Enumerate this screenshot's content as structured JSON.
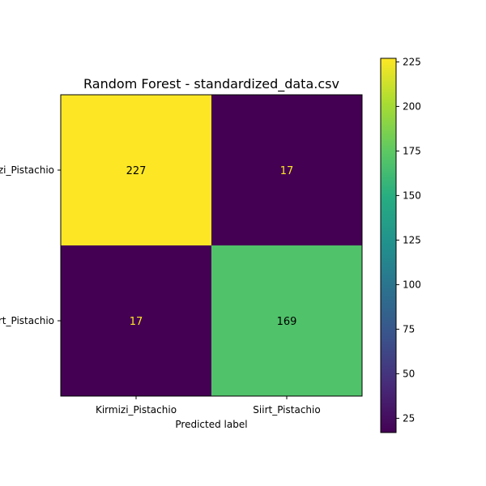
{
  "chart_data": {
    "type": "heatmap",
    "title": "Random Forest - standardized_data.csv",
    "xlabel": "Predicted label",
    "ylabel": "",
    "x_categories": [
      "Kirmizi_Pistachio",
      "Siirt_Pistachio"
    ],
    "y_categories": [
      "Kirmizi_Pistachio",
      "Siirt_Pistachio"
    ],
    "matrix": [
      [
        227,
        17
      ],
      [
        17,
        169
      ]
    ],
    "colormap": "viridis",
    "colorbar": {
      "min": 17,
      "max": 227,
      "ticks": [
        25,
        50,
        75,
        100,
        125,
        150,
        175,
        200,
        225
      ]
    },
    "grid": false
  }
}
